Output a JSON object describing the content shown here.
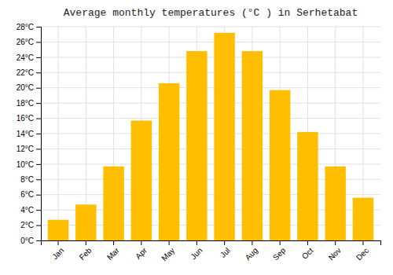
{
  "chart_data": {
    "type": "bar",
    "title": "Average monthly temperatures (°C ) in Serhetabat",
    "categories": [
      "Jan",
      "Feb",
      "Mar",
      "Apr",
      "May",
      "Jun",
      "Jul",
      "Aug",
      "Sep",
      "Oct",
      "Nov",
      "Dec"
    ],
    "values": [
      2.7,
      4.7,
      9.7,
      15.7,
      20.6,
      24.8,
      27.2,
      24.8,
      19.7,
      14.2,
      9.7,
      5.6
    ],
    "color": "#FFBE00",
    "ylim": [
      0,
      28
    ],
    "yticks": [
      {
        "value": 0,
        "label": "0°C"
      },
      {
        "value": 2,
        "label": "2°C"
      },
      {
        "value": 4,
        "label": "4°C"
      },
      {
        "value": 6,
        "label": "6°C"
      },
      {
        "value": 8,
        "label": "8°C"
      },
      {
        "value": 10,
        "label": "10°C"
      },
      {
        "value": 12,
        "label": "12°C"
      },
      {
        "value": 14,
        "label": "14°C"
      },
      {
        "value": 16,
        "label": "16°C"
      },
      {
        "value": 18,
        "label": "18°C"
      },
      {
        "value": 20,
        "label": "20°C"
      },
      {
        "value": 22,
        "label": "22°C"
      },
      {
        "value": 24,
        "label": "24°C"
      },
      {
        "value": 26,
        "label": "26°C"
      },
      {
        "value": 28,
        "label": "28°C"
      }
    ],
    "grid": true
  }
}
